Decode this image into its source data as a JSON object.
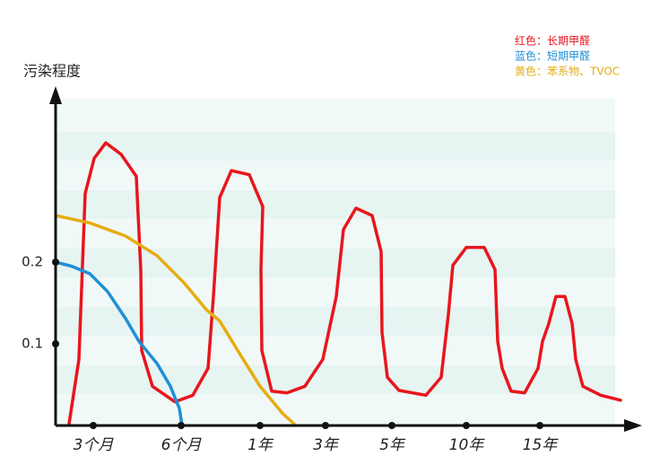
{
  "chart_data": {
    "type": "line",
    "ylabel": "污染程度",
    "xlim": [
      0,
      65
    ],
    "ylim": [
      0,
      0.4
    ],
    "xticks": [
      {
        "value": 4.2,
        "label": "3个月"
      },
      {
        "value": 14,
        "label": "6个月"
      },
      {
        "value": 22.8,
        "label": "1年"
      },
      {
        "value": 30.1,
        "label": "3年"
      },
      {
        "value": 37.5,
        "label": "5年"
      },
      {
        "value": 45.8,
        "label": "10年"
      },
      {
        "value": 54,
        "label": "15年"
      }
    ],
    "yticks": [
      0.1,
      0.2
    ],
    "series": [
      {
        "name": "红色：长期甲醛",
        "color": "#e8161c",
        "x": [
          1.5,
          2.6,
          3.3,
          4.3,
          5.6,
          7.3,
          9.0,
          9.5,
          9.6,
          10.8,
          13.3,
          15.3,
          17.0,
          17.6,
          18.3,
          19.6,
          21.6,
          23.1,
          22.9,
          23.0,
          24.1,
          25.8,
          27.8,
          29.8,
          31.3,
          32.1,
          33.5,
          35.3,
          36.3,
          36.4,
          37.0,
          38.3,
          41.3,
          43.0,
          43.8,
          44.3,
          45.8,
          47.8,
          49.0,
          49.3,
          49.8,
          50.8,
          52.3,
          53.8,
          54.3,
          55.0,
          55.8,
          56.8,
          57.6,
          58.0,
          58.8,
          60.8,
          63.0
        ],
        "values": [
          0.002,
          0.081,
          0.284,
          0.327,
          0.346,
          0.332,
          0.305,
          0.19,
          0.092,
          0.048,
          0.029,
          0.037,
          0.07,
          0.158,
          0.279,
          0.312,
          0.307,
          0.268,
          0.191,
          0.092,
          0.042,
          0.04,
          0.048,
          0.081,
          0.158,
          0.24,
          0.266,
          0.257,
          0.213,
          0.114,
          0.059,
          0.043,
          0.037,
          0.059,
          0.136,
          0.196,
          0.218,
          0.218,
          0.191,
          0.103,
          0.07,
          0.042,
          0.04,
          0.07,
          0.103,
          0.125,
          0.158,
          0.158,
          0.125,
          0.081,
          0.048,
          0.037,
          0.031
        ]
      },
      {
        "name": "蓝色：短期甲醛",
        "color": "#1f8fd6",
        "x": [
          0,
          1.8,
          3.8,
          5.8,
          7.8,
          9.3,
          11.3,
          12.8,
          13.8,
          14.1
        ],
        "values": [
          0.2,
          0.195,
          0.186,
          0.164,
          0.131,
          0.103,
          0.076,
          0.048,
          0.021,
          0
        ]
      },
      {
        "name": "黄色：苯系物、TVOC",
        "color": "#e6ac12",
        "x": [
          0,
          3.8,
          7.8,
          11.3,
          14.3,
          16.8,
          18.3,
          20.3,
          22.8,
          25.3,
          26.8
        ],
        "values": [
          0.257,
          0.248,
          0.232,
          0.208,
          0.175,
          0.142,
          0.128,
          0.092,
          0.048,
          0.015,
          0
        ]
      }
    ]
  }
}
